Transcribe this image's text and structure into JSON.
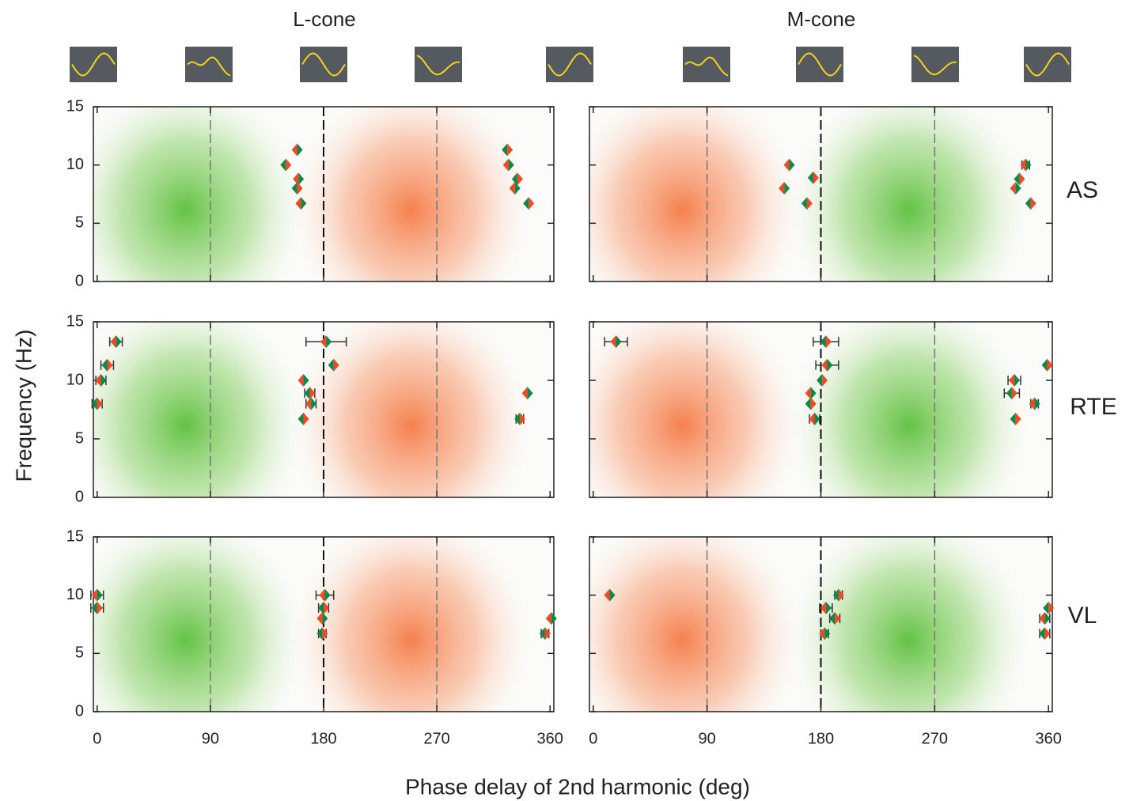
{
  "columns": [
    "L-cone",
    "M-cone"
  ],
  "column_colors": [
    "#ee4a26",
    "#1ea84a"
  ],
  "rows": [
    "AS",
    "RTE",
    "VL"
  ],
  "y_label": "Frequency (Hz)",
  "x_label": "Phase delay of 2nd harmonic (deg)",
  "marker_colors": [
    "#ef4a24",
    "#12874a"
  ],
  "chart_data": [
    {
      "type": "scatter",
      "xlim": [
        -3,
        363
      ],
      "ylim": [
        0,
        15
      ],
      "xticks": [
        0,
        90,
        180,
        270,
        360
      ],
      "yticks": [
        0,
        5,
        10,
        15
      ],
      "x": [
        159,
        150,
        160,
        159,
        162,
        326,
        327,
        334,
        332,
        343
      ],
      "y": [
        11.3,
        10,
        8.8,
        8,
        6.7,
        11.3,
        10,
        8.8,
        8,
        6.7
      ],
      "xerr": [
        null,
        null,
        null,
        null,
        null,
        null,
        null,
        null,
        null,
        null
      ]
    },
    {
      "type": "scatter",
      "xlim": [
        -3,
        363
      ],
      "ylim": [
        0,
        15
      ],
      "xticks": [
        0,
        90,
        180,
        270,
        360
      ],
      "yticks": [
        0,
        5,
        10,
        15
      ],
      "x": [
        155,
        174,
        151,
        169,
        342,
        337,
        334,
        346
      ],
      "y": [
        10,
        8.9,
        8,
        6.7,
        10,
        8.8,
        8,
        6.7
      ],
      "xerr": [
        null,
        null,
        null,
        null,
        3,
        null,
        null,
        null
      ]
    },
    {
      "type": "scatter",
      "xlim": [
        -3,
        363
      ],
      "ylim": [
        0,
        15
      ],
      "xticks": [
        0,
        90,
        180,
        270,
        360
      ],
      "yticks": [
        0,
        5,
        10,
        15
      ],
      "x": [
        15,
        8,
        3,
        0,
        164,
        169,
        170,
        164,
        182,
        188,
        342,
        336
      ],
      "y": [
        13.3,
        11.3,
        10,
        8,
        10,
        8.9,
        8,
        6.7,
        13.3,
        11.3,
        8.9,
        6.7
      ],
      "xerr": [
        5,
        5,
        4,
        4,
        null,
        4,
        4,
        null,
        16,
        null,
        null,
        3
      ]
    },
    {
      "type": "scatter",
      "xlim": [
        -3,
        363
      ],
      "ylim": [
        0,
        15
      ],
      "xticks": [
        0,
        90,
        180,
        270,
        360
      ],
      "yticks": [
        0,
        5,
        10,
        15
      ],
      "x": [
        18,
        184,
        185,
        181,
        172,
        172,
        175,
        359,
        333,
        331,
        349,
        334
      ],
      "y": [
        13.3,
        13.3,
        11.3,
        10,
        8.9,
        8,
        6.7,
        11.3,
        10,
        8.9,
        8,
        6.7
      ],
      "xerr": [
        9,
        10,
        9,
        null,
        null,
        null,
        4,
        null,
        5,
        6,
        3,
        null
      ]
    },
    {
      "type": "scatter",
      "xlim": [
        -3,
        363
      ],
      "ylim": [
        0,
        15
      ],
      "xticks": [
        0,
        90,
        180,
        270,
        360
      ],
      "yticks": [
        0,
        5,
        10,
        15
      ],
      "x": [
        0,
        0,
        181,
        180,
        179,
        179,
        361,
        356
      ],
      "y": [
        10,
        8.9,
        10,
        8.9,
        8,
        6.7,
        8,
        6.7
      ],
      "xerr": [
        5,
        5,
        7,
        4,
        null,
        3,
        null,
        3
      ]
    },
    {
      "type": "scatter",
      "xlim": [
        -3,
        363
      ],
      "ylim": [
        0,
        15
      ],
      "xticks": [
        0,
        90,
        180,
        270,
        360
      ],
      "yticks": [
        0,
        5,
        10,
        15
      ],
      "x": [
        13,
        194,
        184,
        191,
        183,
        360,
        357,
        357
      ],
      "y": [
        10,
        10,
        8.9,
        8,
        6.7,
        8.9,
        8,
        6.7
      ],
      "xerr": [
        null,
        3,
        5,
        4,
        3,
        null,
        4,
        4
      ]
    }
  ]
}
